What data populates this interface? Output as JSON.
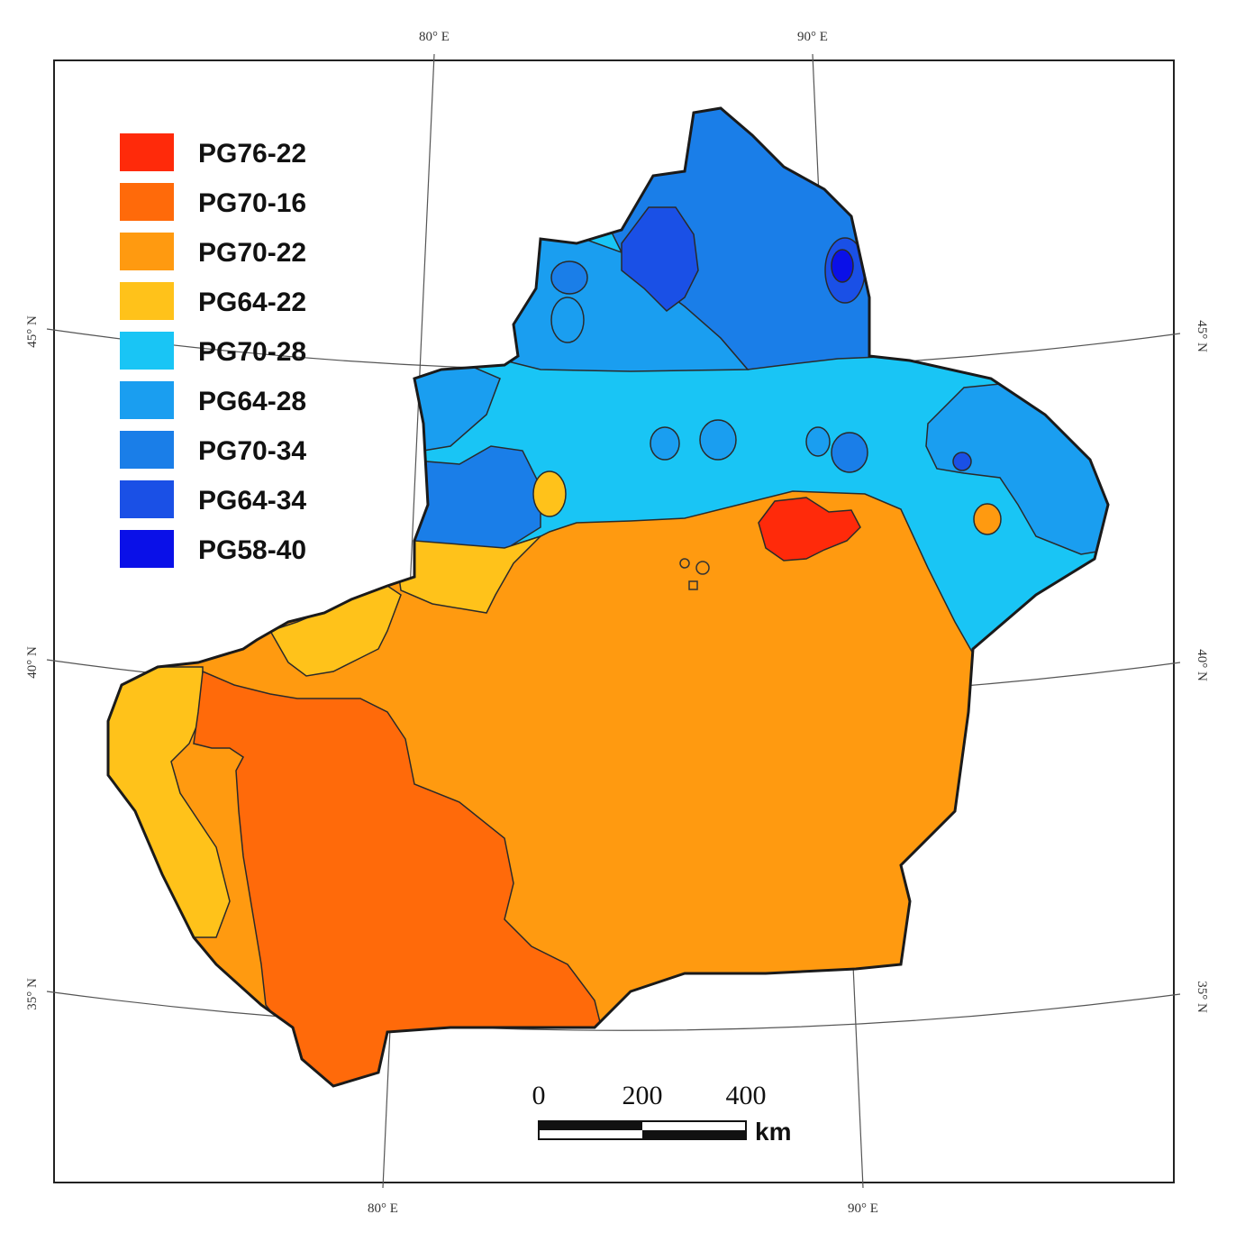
{
  "legend": [
    {
      "label": "PG76-22",
      "color": "#ff2a0a"
    },
    {
      "label": "PG70-16",
      "color": "#ff6a0a"
    },
    {
      "label": "PG70-22",
      "color": "#ff9a10"
    },
    {
      "label": "PG64-22",
      "color": "#ffc21a"
    },
    {
      "label": "PG70-28",
      "color": "#19c5f5"
    },
    {
      "label": "PG64-28",
      "color": "#1a9ef0"
    },
    {
      "label": "PG70-34",
      "color": "#1a7ee8"
    },
    {
      "label": "PG64-34",
      "color": "#1a50e6"
    },
    {
      "label": "PG58-40",
      "color": "#0a10e8"
    }
  ],
  "graticule": {
    "top_80": "80° E",
    "top_90": "90° E",
    "bottom_80": "80° E",
    "bottom_90": "90° E",
    "left_45": "45° N",
    "left_40": "40° N",
    "left_35": "35° N",
    "right_45": "45° N",
    "right_40": "40° N",
    "right_35": "35° N"
  },
  "scale_bar": {
    "tick_0": "0",
    "tick_200": "200",
    "tick_400": "400",
    "unit": "km"
  }
}
